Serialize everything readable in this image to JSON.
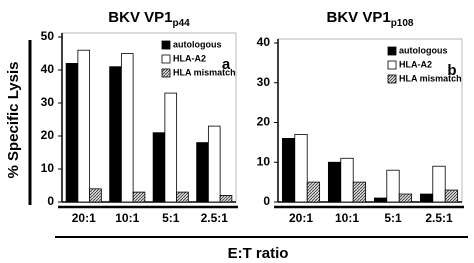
{
  "axis_labels": {
    "y": "% Specific Lysis",
    "x": "E:T ratio"
  },
  "chart_data": [
    {
      "type": "bar",
      "title": "BKV VP1",
      "title_subscript": "p44",
      "panel_label": "a",
      "categories": [
        "20:1",
        "10:1",
        "5:1",
        "2.5:1"
      ],
      "series": [
        {
          "name": "autologous",
          "color": "#000000",
          "values": [
            42,
            41,
            21,
            18
          ]
        },
        {
          "name": "HLA-A2",
          "color": "#ffffff",
          "values": [
            46,
            45,
            33,
            23
          ]
        },
        {
          "name": "HLA mismatch",
          "color": "#999999",
          "pattern": "hatch",
          "values": [
            4,
            3,
            3,
            2
          ]
        }
      ],
      "ylim": [
        0,
        50
      ],
      "yticks": [
        0,
        10,
        20,
        30,
        40,
        50
      ],
      "legend": "upper right"
    },
    {
      "type": "bar",
      "title": "BKV VP1",
      "title_subscript": "p108",
      "panel_label": "b",
      "categories": [
        "20:1",
        "10:1",
        "5:1",
        "2.5:1"
      ],
      "series": [
        {
          "name": "autologous",
          "color": "#000000",
          "values": [
            16,
            10,
            1,
            2
          ]
        },
        {
          "name": "HLA-A2",
          "color": "#ffffff",
          "values": [
            17,
            11,
            8,
            9
          ]
        },
        {
          "name": "HLA mismatch",
          "color": "#999999",
          "pattern": "hatch",
          "values": [
            5,
            5,
            2,
            3
          ]
        }
      ],
      "ylim": [
        0,
        40
      ],
      "yticks": [
        0,
        10,
        20,
        30,
        40
      ],
      "legend": "upper right"
    }
  ]
}
